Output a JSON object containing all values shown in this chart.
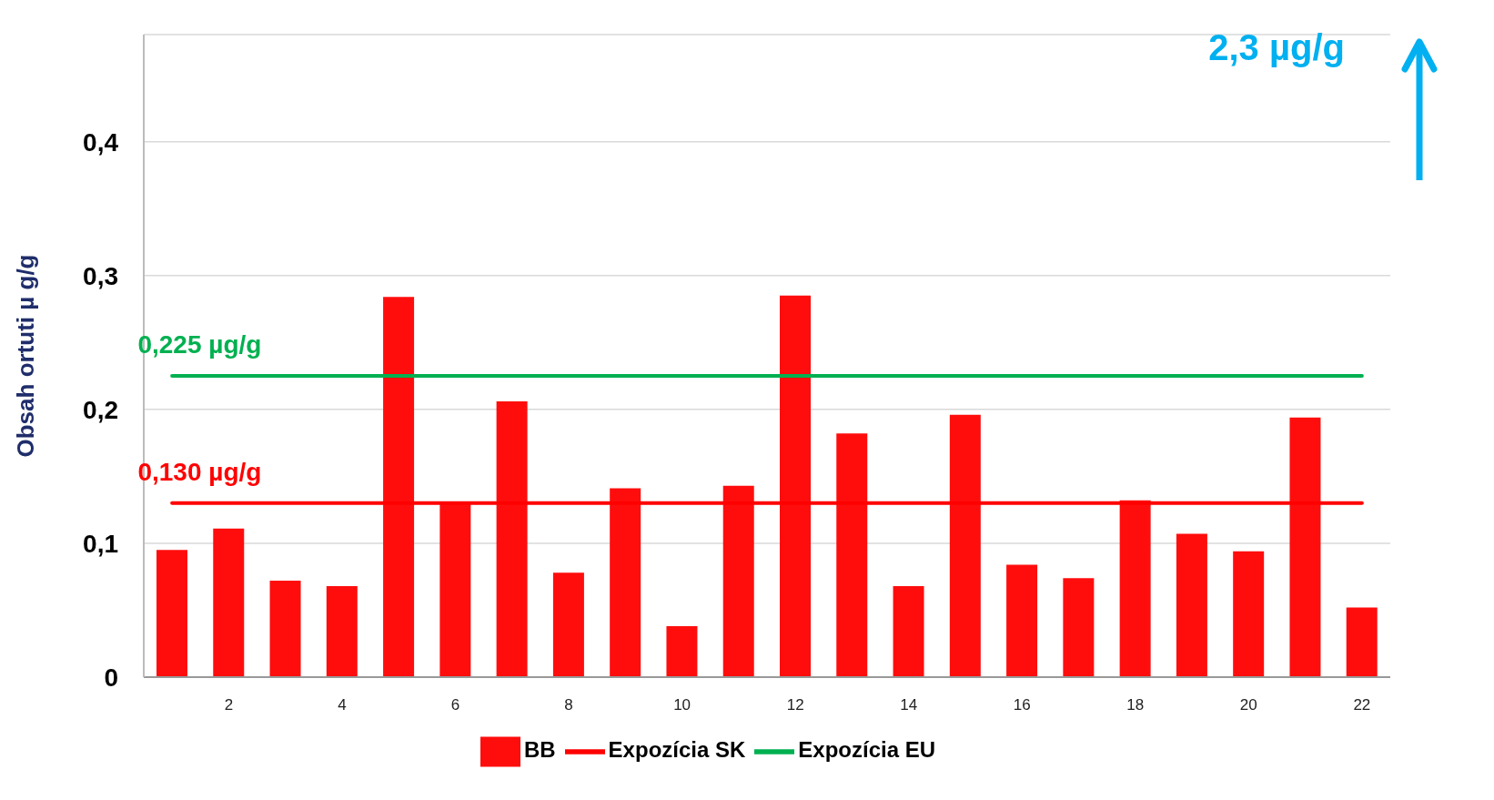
{
  "chart_data": {
    "type": "bar",
    "ylabel": "Obsah ortuti µ g/g",
    "categories": [
      null,
      "2",
      null,
      "4",
      null,
      "6",
      null,
      "8",
      null,
      "10",
      null,
      "12",
      null,
      "14",
      null,
      "16",
      null,
      "18",
      null,
      "20",
      null,
      "22"
    ],
    "series": [
      {
        "name": "BB",
        "color": "#ff0d0d",
        "values": [
          0.095,
          0.111,
          0.072,
          0.068,
          0.284,
          0.131,
          0.206,
          0.078,
          0.141,
          0.038,
          0.143,
          0.285,
          0.182,
          0.068,
          0.196,
          0.084,
          0.074,
          0.132,
          0.107,
          0.094,
          0.194,
          0.052
        ]
      },
      {
        "name": "Expozícia SK",
        "type": "line",
        "color": "#ff0000",
        "values": [
          0.13,
          0.13,
          0.13,
          0.13,
          0.13,
          0.13,
          0.13,
          0.13,
          0.13,
          0.13,
          0.13,
          0.13,
          0.13,
          0.13,
          0.13,
          0.13,
          0.13,
          0.13,
          0.13,
          0.13,
          0.13,
          0.13
        ]
      },
      {
        "name": "Expozícia EU",
        "type": "line",
        "color": "#00b050",
        "values": [
          0.225,
          0.225,
          0.225,
          0.225,
          0.225,
          0.225,
          0.225,
          0.225,
          0.225,
          0.225,
          0.225,
          0.225,
          0.225,
          0.225,
          0.225,
          0.225,
          0.225,
          0.225,
          0.225,
          0.225,
          0.225,
          0.225
        ]
      }
    ],
    "annotations": [
      {
        "text": "0,130 µg/g",
        "y": 0.13
      },
      {
        "text": "0,225 µg/g",
        "y": 0.225
      },
      "2,3 µg/g"
    ],
    "ylim": [
      0,
      0.48
    ],
    "yticks": [
      0,
      {
        "value": 0.1,
        "label": "0,1"
      },
      {
        "value": 0.2,
        "label": "0,2"
      },
      {
        "value": 0.3,
        "label": "0,3"
      },
      {
        "value": 0.4,
        "label": "0,4"
      }
    ],
    "grid": "y",
    "legend": "bottom",
    "marker": "none"
  }
}
